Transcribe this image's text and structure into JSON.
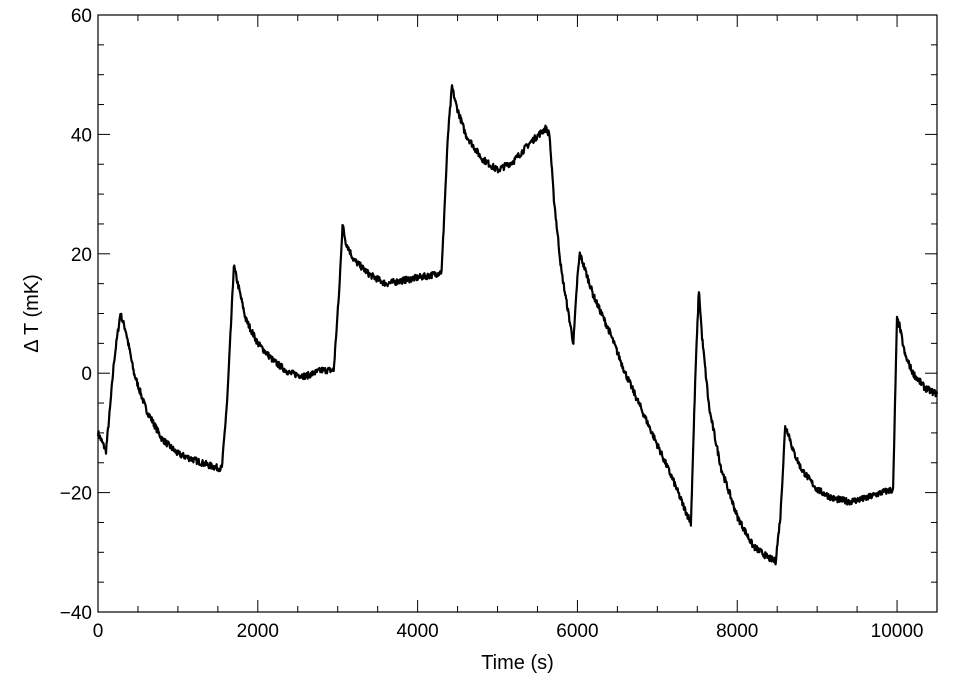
{
  "chart_data": {
    "type": "line",
    "title": "",
    "xlabel": "Time (s)",
    "ylabel": "Δ T (mK)",
    "xlim": [
      0,
      10500
    ],
    "ylim": [
      -40,
      60
    ],
    "xticks": [
      0,
      2000,
      4000,
      6000,
      8000,
      10000
    ],
    "xtick_labels": [
      "0",
      "2000",
      "4000",
      "6000",
      "8000",
      "10000"
    ],
    "yticks": [
      -40,
      -20,
      0,
      20,
      40,
      60
    ],
    "ytick_labels": [
      "−40",
      "−20",
      "0",
      "20",
      "40",
      "60"
    ],
    "grid": false,
    "legend": false,
    "line_color": "#000000",
    "series": [
      {
        "x": [
          0,
          100,
          150,
          200,
          280,
          350,
          450,
          600,
          800,
          1000,
          1200,
          1400,
          1550,
          1620,
          1700,
          1750,
          1850,
          2000,
          2200,
          2400,
          2600,
          2800,
          2950,
          3020,
          3060,
          3100,
          3200,
          3400,
          3600,
          3800,
          4000,
          4200,
          4300,
          4380,
          4430,
          4480,
          4600,
          4800,
          5000,
          5200,
          5400,
          5600,
          5650,
          5700,
          5800,
          5900,
          5950,
          6000,
          6030,
          6080,
          6200,
          6400,
          6600,
          6800,
          7000,
          7200,
          7350,
          7420,
          7480,
          7520,
          7560,
          7650,
          7800,
          8000,
          8200,
          8400,
          8480,
          8540,
          8600,
          8640,
          8700,
          8800,
          9000,
          9200,
          9400,
          9600,
          9800,
          9950,
          10000,
          10030,
          10100,
          10200,
          10350,
          10500
        ],
        "y": [
          -10,
          -13,
          -6,
          2,
          10,
          7,
          0,
          -6,
          -11,
          -13.5,
          -14.5,
          -15.5,
          -16,
          -4,
          18,
          15,
          9,
          5,
          2,
          0,
          -0.5,
          0.5,
          0.5,
          14,
          25,
          22,
          19,
          16.5,
          15,
          15.5,
          16,
          16.5,
          17,
          40,
          48,
          45,
          40,
          36,
          34,
          35.5,
          38.5,
          41,
          40,
          30,
          17,
          9,
          5,
          16,
          20,
          18,
          13,
          7,
          0,
          -6,
          -12,
          -18,
          -23,
          -25,
          1,
          14,
          6,
          -6,
          -16,
          -24,
          -29,
          -31,
          -31.5,
          -24,
          -9,
          -10,
          -13,
          -16,
          -19.5,
          -21,
          -21.5,
          -21,
          -20,
          -19.5,
          9,
          8,
          3,
          0,
          -2.5,
          -3.5
        ]
      }
    ]
  }
}
